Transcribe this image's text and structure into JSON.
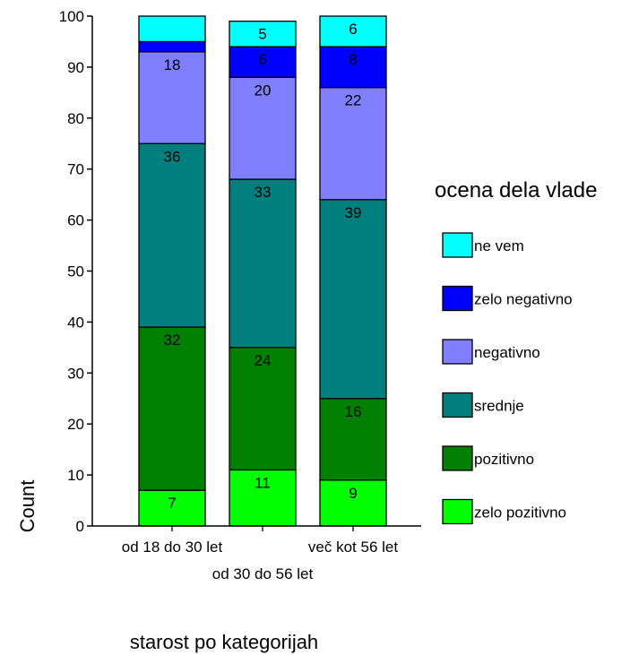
{
  "chart_data": {
    "type": "bar",
    "stacked": true,
    "ylabel": "Count",
    "xlabel": "starost po kategorijah",
    "ylim": [
      0,
      100
    ],
    "yticks": [
      "0",
      "10",
      "20",
      "30",
      "40",
      "50",
      "60",
      "70",
      "80",
      "90",
      "100"
    ],
    "categories": [
      "od 18 do 30 let",
      "od 30 do 56 let",
      "več kot 56 let"
    ],
    "legend": {
      "title": "ocena dela vlade",
      "placement": "right"
    },
    "series": [
      {
        "name": "zelo pozitivno",
        "color": "#00ff00",
        "values": [
          7,
          11,
          9
        ],
        "labels": [
          "7",
          "11",
          "9"
        ]
      },
      {
        "name": "pozitivno",
        "color": "#007f00",
        "values": [
          32,
          24,
          16
        ],
        "labels": [
          "32",
          "24",
          "16"
        ]
      },
      {
        "name": "srednje",
        "color": "#007f7f",
        "values": [
          36,
          33,
          39
        ],
        "labels": [
          "36",
          "33",
          "39"
        ]
      },
      {
        "name": "negativno",
        "color": "#7f7fff",
        "values": [
          18,
          20,
          22
        ],
        "labels": [
          "18",
          "20",
          "22"
        ]
      },
      {
        "name": "zelo negativno",
        "color": "#0000ff",
        "values": [
          2,
          6,
          8
        ],
        "labels": [
          "",
          "6",
          "8"
        ]
      },
      {
        "name": "ne vem",
        "color": "#00ffff",
        "values": [
          5,
          5,
          6
        ],
        "labels": [
          "",
          "5",
          "6"
        ]
      }
    ]
  }
}
